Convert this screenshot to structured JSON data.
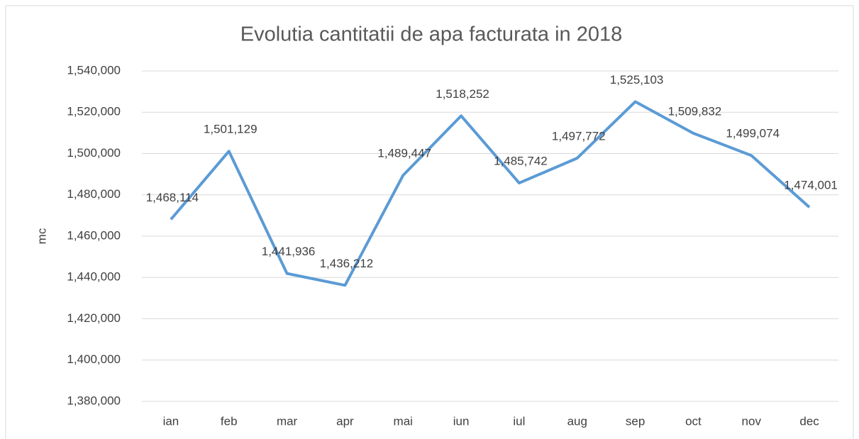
{
  "chart_data": {
    "type": "line",
    "title": "Evolutia cantitatii de apa facturata in 2018",
    "ylabel": "mc",
    "categories": [
      "ian",
      "feb",
      "mar",
      "apr",
      "mai",
      "iun",
      "iul",
      "aug",
      "sep",
      "oct",
      "nov",
      "dec"
    ],
    "values": [
      1468114,
      1501129,
      1441936,
      1436212,
      1489447,
      1518252,
      1485742,
      1497772,
      1525103,
      1509832,
      1499074,
      1474001
    ],
    "value_labels": [
      "1,468,114",
      "1,501,129",
      "1,441,936",
      "1,436,212",
      "1,489,447",
      "1,518,252",
      "1,485,742",
      "1,497,772",
      "1,525,103",
      "1,509,832",
      "1,499,074",
      "1,474,001"
    ],
    "color": "#5b9bd5",
    "ylim": [
      1380000,
      1540000
    ],
    "yticks": [
      {
        "value": 1380000,
        "label": "1,380,000"
      },
      {
        "value": 1400000,
        "label": "1,400,000"
      },
      {
        "value": 1420000,
        "label": "1,420,000"
      },
      {
        "value": 1440000,
        "label": "1,440,000"
      },
      {
        "value": 1460000,
        "label": "1,460,000"
      },
      {
        "value": 1480000,
        "label": "1,480,000"
      },
      {
        "value": 1500000,
        "label": "1,500,000"
      },
      {
        "value": 1520000,
        "label": "1,520,000"
      },
      {
        "value": 1540000,
        "label": "1,540,000"
      }
    ],
    "grid": true
  }
}
